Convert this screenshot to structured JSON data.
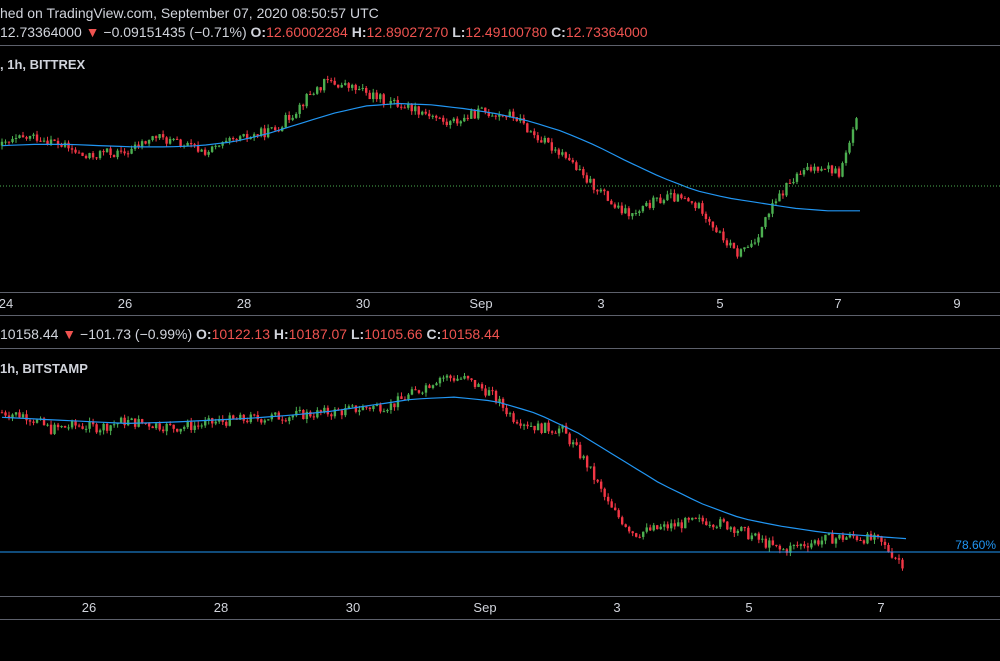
{
  "header": {
    "credit": "hed on TradingView.com, September 07, 2020 08:50:57 UTC"
  },
  "panel1": {
    "ohlc": {
      "last": "12.73364000",
      "arrow": "▼",
      "change": "−0.09151435 (−0.71%)",
      "o_label": "O:",
      "o": "12.60002284",
      "h_label": "H:",
      "h": "12.89027270",
      "l_label": "L:",
      "l": "12.49100780",
      "c_label": "C:",
      "c": "12.73364000"
    },
    "legend": ", 1h, BITTREX",
    "xaxis": [
      "24",
      "26",
      "28",
      "30",
      "Sep",
      "3",
      "5",
      "7",
      "9"
    ]
  },
  "panel2": {
    "ohlc": {
      "last": "10158.44",
      "arrow": "▼",
      "change": "−101.73 (−0.99%)",
      "o_label": "O:",
      "o": "10122.13",
      "h_label": "H:",
      "h": "10187.07",
      "l_label": "L:",
      "l": "10105.66",
      "c_label": "C:",
      "c": "10158.44"
    },
    "legend": "1h, BITSTAMP",
    "xaxis": [
      "26",
      "28",
      "30",
      "Sep",
      "3",
      "5",
      "7"
    ],
    "fib_label": "78.60%"
  },
  "colors": {
    "up": "#26a69a",
    "down": "#ef5350",
    "bull_candle": "#4caf50",
    "bear_candle": "#f23645",
    "ma": "#2196f3",
    "last_price_line": "#4caf50",
    "fib_line": "#2196f3"
  },
  "chart_data": [
    {
      "type": "candlestick",
      "symbol_source": "BITTREX",
      "timeframe": "1h",
      "x_ticks": [
        "24",
        "26",
        "28",
        "30",
        "Sep",
        "3",
        "5",
        "7",
        "9"
      ],
      "close_path": [
        12.55,
        12.6,
        12.62,
        12.58,
        12.52,
        12.45,
        12.5,
        12.48,
        12.55,
        12.62,
        12.58,
        12.54,
        12.5,
        12.56,
        12.6,
        12.64,
        12.68,
        12.8,
        12.95,
        13.05,
        13.02,
        12.98,
        12.92,
        12.88,
        12.85,
        12.8,
        12.72,
        12.76,
        12.82,
        12.8,
        12.78,
        12.65,
        12.55,
        12.48,
        12.3,
        12.2,
        12.05,
        12.0,
        12.1,
        12.15,
        12.12,
        12.05,
        11.85,
        11.7,
        11.8,
        12.05,
        12.25,
        12.35,
        12.4,
        12.33,
        12.73
      ],
      "ma_path": [
        12.55,
        12.56,
        12.56,
        12.55,
        12.54,
        12.54,
        12.55,
        12.58,
        12.64,
        12.72,
        12.8,
        12.86,
        12.88,
        12.87,
        12.84,
        12.8,
        12.74,
        12.66,
        12.55,
        12.42,
        12.3,
        12.2,
        12.14,
        12.1,
        12.06,
        12.04,
        12.04
      ],
      "series": [
        {
          "name": "",
          "values": []
        }
      ]
    },
    {
      "type": "candlestick",
      "symbol_source": "BITSTAMP",
      "timeframe": "1h",
      "x_ticks": [
        "26",
        "28",
        "30",
        "Sep",
        "3",
        "5",
        "7"
      ],
      "close_path": [
        11650,
        11620,
        11480,
        11520,
        11500,
        11560,
        11540,
        11500,
        11520,
        11560,
        11580,
        11600,
        11620,
        11640,
        11660,
        11700,
        11720,
        11850,
        12000,
        11980,
        11850,
        11600,
        11500,
        11480,
        11150,
        10700,
        10450,
        10500,
        10550,
        10580,
        10520,
        10400,
        10280,
        10350,
        10400,
        10420,
        10380,
        10158
      ],
      "ma_path": [
        11600,
        11580,
        11560,
        11540,
        11550,
        11570,
        11590,
        11620,
        11660,
        11720,
        11780,
        11800,
        11760,
        11640,
        11450,
        11200,
        10950,
        10750,
        10600,
        10520,
        10460,
        10430,
        10400
      ],
      "fib_level": "78.60%"
    }
  ]
}
